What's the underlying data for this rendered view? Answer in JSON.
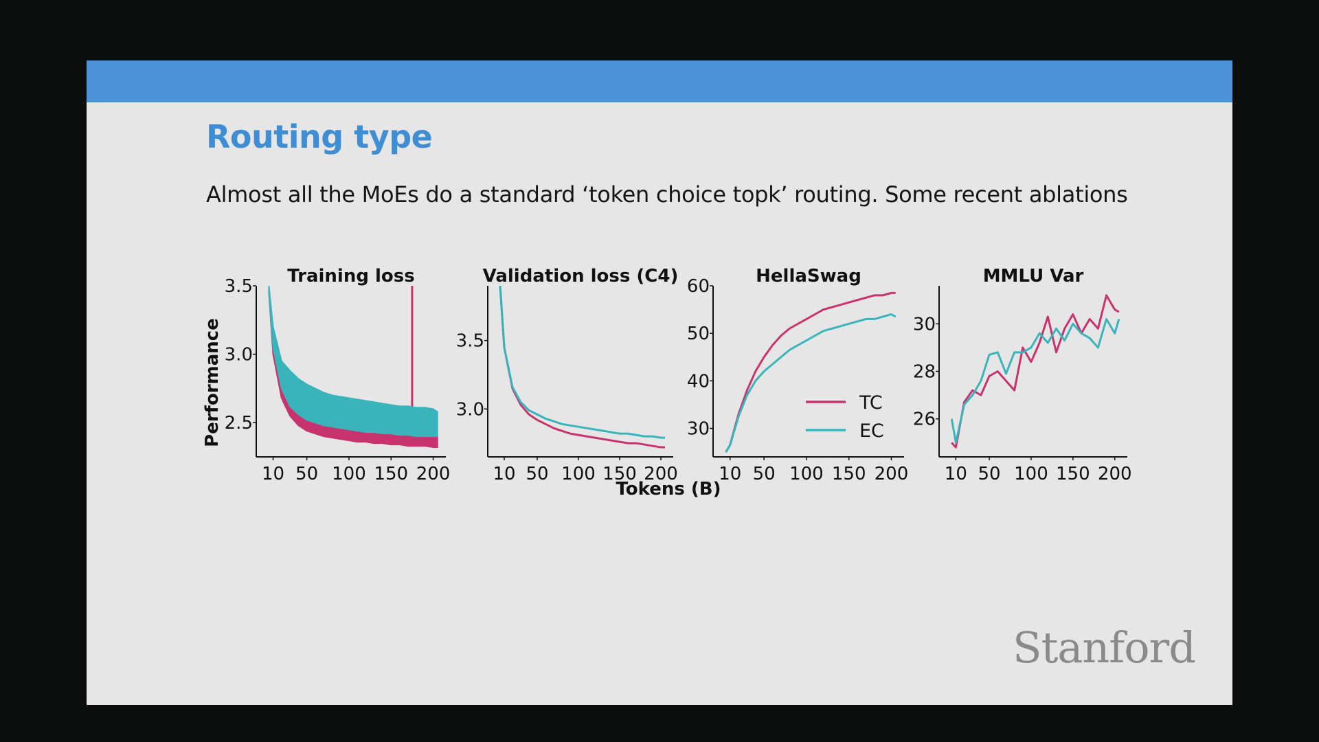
{
  "slide": {
    "title": "Routing type",
    "subtitle": "Almost all the MoEs do a standard ‘token choice topk’ routing. Some recent ablations",
    "logo": "Stanford"
  },
  "colors": {
    "header_bar": "#4b94d8",
    "title": "#3f8ed4",
    "TC": "#c8336e",
    "EC": "#3ab4bb"
  },
  "figure": {
    "ylabel": "Performance",
    "xlabel": "Tokens (B)",
    "legend": [
      {
        "name": "TC",
        "color": "#c8336e"
      },
      {
        "name": "EC",
        "color": "#3ab4bb"
      }
    ]
  },
  "chart_data": [
    {
      "type": "area",
      "title": "Training loss",
      "xlim": [
        -10,
        215
      ],
      "ylim": [
        2.25,
        3.5
      ],
      "xticks": [
        "10",
        "50",
        "100",
        "150",
        "200"
      ],
      "xtick_values": [
        10,
        50,
        100,
        150,
        200
      ],
      "yticks": [
        "2.5",
        "3.0",
        "3.5"
      ],
      "ytick_values": [
        2.5,
        3.0,
        3.5
      ],
      "x": [
        5,
        10,
        20,
        30,
        40,
        50,
        60,
        70,
        80,
        90,
        100,
        110,
        120,
        130,
        140,
        150,
        160,
        170,
        180,
        190,
        200,
        205
      ],
      "series": [
        {
          "name": "TC",
          "low": [
            3.45,
            3.0,
            2.68,
            2.55,
            2.48,
            2.44,
            2.42,
            2.4,
            2.39,
            2.38,
            2.37,
            2.36,
            2.36,
            2.35,
            2.35,
            2.34,
            2.34,
            2.33,
            2.33,
            2.33,
            2.32,
            2.32
          ],
          "high": [
            3.45,
            3.05,
            2.75,
            2.62,
            2.56,
            2.52,
            2.5,
            2.48,
            2.47,
            2.46,
            2.45,
            2.44,
            2.43,
            2.43,
            2.42,
            2.42,
            2.41,
            2.41,
            2.4,
            2.4,
            2.4,
            2.4
          ],
          "spike": {
            "x": 175,
            "y": 3.5
          }
        },
        {
          "name": "EC",
          "low": [
            3.45,
            3.05,
            2.75,
            2.62,
            2.56,
            2.52,
            2.5,
            2.48,
            2.47,
            2.46,
            2.45,
            2.44,
            2.43,
            2.43,
            2.42,
            2.42,
            2.41,
            2.41,
            2.4,
            2.4,
            2.4,
            2.4
          ],
          "high": [
            3.5,
            3.2,
            2.95,
            2.88,
            2.82,
            2.78,
            2.75,
            2.72,
            2.7,
            2.69,
            2.68,
            2.67,
            2.66,
            2.65,
            2.64,
            2.63,
            2.62,
            2.62,
            2.61,
            2.61,
            2.6,
            2.58
          ]
        }
      ]
    },
    {
      "type": "line",
      "title": "Validation loss (C4)",
      "xlim": [
        -10,
        215
      ],
      "ylim": [
        2.65,
        3.9
      ],
      "xticks": [
        "10",
        "50",
        "100",
        "150",
        "200"
      ],
      "xtick_values": [
        10,
        50,
        100,
        150,
        200
      ],
      "yticks": [
        "3.0",
        "3.5"
      ],
      "ytick_values": [
        3.0,
        3.5
      ],
      "x": [
        5,
        10,
        20,
        30,
        40,
        50,
        60,
        70,
        80,
        90,
        100,
        110,
        120,
        130,
        140,
        150,
        160,
        170,
        180,
        190,
        200,
        205
      ],
      "series": [
        {
          "name": "TC",
          "values": [
            3.9,
            3.45,
            3.15,
            3.03,
            2.96,
            2.92,
            2.89,
            2.86,
            2.84,
            2.82,
            2.81,
            2.8,
            2.79,
            2.78,
            2.77,
            2.76,
            2.75,
            2.75,
            2.74,
            2.73,
            2.72,
            2.72
          ]
        },
        {
          "name": "EC",
          "values": [
            3.9,
            3.45,
            3.16,
            3.05,
            2.99,
            2.96,
            2.93,
            2.91,
            2.89,
            2.88,
            2.87,
            2.86,
            2.85,
            2.84,
            2.83,
            2.82,
            2.82,
            2.81,
            2.8,
            2.8,
            2.79,
            2.79
          ]
        }
      ]
    },
    {
      "type": "line",
      "title": "HellaSwag",
      "xlim": [
        -10,
        215
      ],
      "ylim": [
        24,
        60
      ],
      "xticks": [
        "10",
        "50",
        "100",
        "150",
        "200"
      ],
      "xtick_values": [
        10,
        50,
        100,
        150,
        200
      ],
      "yticks": [
        "30",
        "40",
        "50",
        "60"
      ],
      "ytick_values": [
        30,
        40,
        50,
        60
      ],
      "x": [
        5,
        10,
        20,
        30,
        40,
        50,
        60,
        70,
        80,
        90,
        100,
        110,
        120,
        130,
        140,
        150,
        160,
        170,
        180,
        190,
        200,
        205
      ],
      "series": [
        {
          "name": "TC",
          "values": [
            25,
            26.5,
            33,
            38,
            42,
            45,
            47.5,
            49.5,
            51,
            52,
            53,
            54,
            55,
            55.5,
            56,
            56.5,
            57,
            57.5,
            58,
            58,
            58.5,
            58.5
          ]
        },
        {
          "name": "EC",
          "values": [
            25,
            26.5,
            32.5,
            37,
            40,
            42,
            43.5,
            45,
            46.5,
            47.5,
            48.5,
            49.5,
            50.5,
            51,
            51.5,
            52,
            52.5,
            53,
            53,
            53.5,
            54,
            53.5
          ]
        }
      ],
      "legend": "center-right"
    },
    {
      "type": "line",
      "title": "MMLU Var",
      "xlim": [
        -10,
        215
      ],
      "ylim": [
        24.4,
        31.6
      ],
      "xticks": [
        "10",
        "50",
        "100",
        "150",
        "200"
      ],
      "xtick_values": [
        10,
        50,
        100,
        150,
        200
      ],
      "yticks": [
        "26",
        "28",
        "30"
      ],
      "ytick_values": [
        26,
        28,
        30
      ],
      "x": [
        5,
        10,
        20,
        30,
        40,
        50,
        60,
        70,
        80,
        90,
        100,
        110,
        120,
        130,
        140,
        150,
        160,
        170,
        180,
        190,
        200,
        205
      ],
      "series": [
        {
          "name": "TC",
          "values": [
            25,
            24.8,
            26.7,
            27.2,
            27.0,
            27.8,
            28.0,
            27.6,
            27.2,
            29.0,
            28.4,
            29.2,
            30.3,
            28.8,
            29.8,
            30.4,
            29.6,
            30.2,
            29.8,
            31.2,
            30.6,
            30.5
          ]
        },
        {
          "name": "EC",
          "values": [
            26,
            25.0,
            26.6,
            27.0,
            27.6,
            28.7,
            28.8,
            27.9,
            28.8,
            28.8,
            29.0,
            29.6,
            29.2,
            29.8,
            29.3,
            30.0,
            29.6,
            29.4,
            29.0,
            30.2,
            29.6,
            30.2
          ]
        }
      ]
    }
  ]
}
